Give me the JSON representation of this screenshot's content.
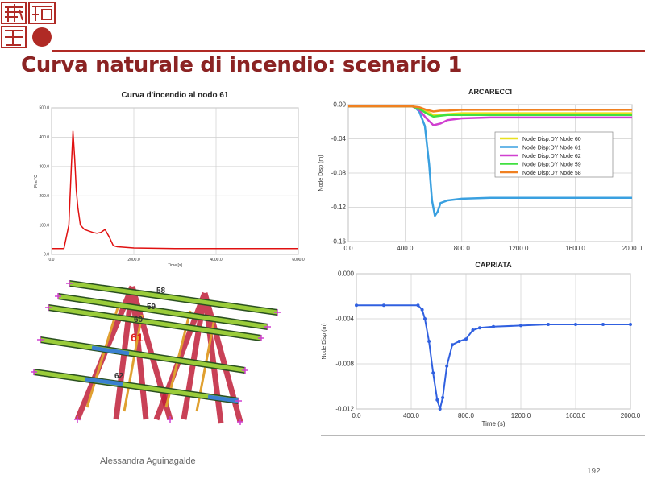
{
  "slide": {
    "title": "Curva naturale di incendio: scenario 1",
    "author": "Alessandra Aguinagalde",
    "page_number": "192"
  },
  "colors": {
    "title": "#8b2323",
    "logo": "#b02a25",
    "fire_curve": "#e01010"
  },
  "chart_data": [
    {
      "id": "fire",
      "type": "line",
      "title": "Curva d'incendio al nodo 61",
      "xlabel": "Time [s]",
      "ylabel": "Fire/°C",
      "xlim": [
        0,
        6000
      ],
      "ylim": [
        0,
        500
      ],
      "x_ticks": [
        "0.0",
        "2000.0",
        "4000.0",
        "6000.0"
      ],
      "x_tick_values": [
        0,
        2000,
        4000,
        6000
      ],
      "y_ticks": [
        "0.0",
        "100.0",
        "200.0",
        "300.0",
        "400.0",
        "500.0"
      ],
      "y_tick_values": [
        0,
        100,
        200,
        300,
        400,
        500
      ],
      "grid": true,
      "series": [
        {
          "color": "#e01010",
          "x": [
            0,
            300,
            420,
            480,
            520,
            560,
            600,
            640,
            700,
            800,
            900,
            1000,
            1100,
            1200,
            1300,
            1400,
            1500,
            1600,
            1800,
            2000,
            2500,
            3000,
            4000,
            5000,
            6000
          ],
          "y": [
            20,
            20,
            100,
            300,
            420,
            330,
            220,
            160,
            100,
            85,
            80,
            75,
            72,
            75,
            85,
            60,
            30,
            26,
            24,
            22,
            21,
            20,
            20,
            20,
            20
          ]
        }
      ]
    },
    {
      "id": "arcarecci",
      "type": "line",
      "title": "ARCARECCI",
      "xlabel": "",
      "ylabel": "Node Disp (m)",
      "xlim": [
        0,
        2000
      ],
      "ylim": [
        -0.16,
        0
      ],
      "x_ticks": [
        "0.0",
        "400.0",
        "800.0",
        "1200.0",
        "1600.0",
        "2000.0"
      ],
      "x_tick_values": [
        0,
        400,
        800,
        1200,
        1600,
        2000
      ],
      "y_ticks": [
        "0.00",
        "-0.04",
        "-0.08",
        "-0.12",
        "-0.16"
      ],
      "y_tick_values": [
        0,
        -0.04,
        -0.08,
        -0.12,
        -0.16
      ],
      "grid": true,
      "legend": "right",
      "series": [
        {
          "name": "Node Disp:DY  Node 60",
          "color": "#e8e020",
          "x": [
            0,
            450,
            500,
            550,
            600,
            650,
            700,
            800,
            1000,
            2000
          ],
          "y": [
            -0.002,
            -0.002,
            -0.004,
            -0.008,
            -0.012,
            -0.012,
            -0.011,
            -0.01,
            -0.01,
            -0.01
          ]
        },
        {
          "name": "Node Disp:DY  Node 61",
          "color": "#3aa0e0",
          "x": [
            0,
            460,
            500,
            540,
            570,
            590,
            610,
            630,
            650,
            700,
            800,
            1000,
            1200,
            1400,
            2000
          ],
          "y": [
            -0.002,
            -0.002,
            -0.008,
            -0.025,
            -0.07,
            -0.112,
            -0.13,
            -0.125,
            -0.115,
            -0.112,
            -0.11,
            -0.109,
            -0.109,
            -0.109,
            -0.109
          ]
        },
        {
          "name": "Node Disp:DY  Node 62",
          "color": "#d040d0",
          "x": [
            0,
            450,
            500,
            550,
            600,
            650,
            700,
            800,
            1000,
            2000
          ],
          "y": [
            -0.002,
            -0.002,
            -0.006,
            -0.016,
            -0.024,
            -0.022,
            -0.018,
            -0.016,
            -0.015,
            -0.015
          ]
        },
        {
          "name": "Node Disp:DY  Node 59",
          "color": "#40e040",
          "x": [
            0,
            450,
            500,
            550,
            600,
            650,
            700,
            800,
            1000,
            2000
          ],
          "y": [
            -0.002,
            -0.002,
            -0.005,
            -0.01,
            -0.014,
            -0.013,
            -0.012,
            -0.012,
            -0.012,
            -0.012
          ]
        },
        {
          "name": "Node Disp:DY  Node 58",
          "color": "#f08020",
          "x": [
            0,
            450,
            500,
            550,
            600,
            650,
            700,
            800,
            1000,
            2000
          ],
          "y": [
            -0.002,
            -0.002,
            -0.003,
            -0.006,
            -0.008,
            -0.007,
            -0.007,
            -0.006,
            -0.006,
            -0.006
          ]
        }
      ]
    },
    {
      "id": "capriata",
      "type": "line",
      "title": "CAPRIATA",
      "xlabel": "Time (s)",
      "ylabel": "Node Disp (m)",
      "xlim": [
        0,
        2000
      ],
      "ylim": [
        -0.012,
        0
      ],
      "x_ticks": [
        "0.0",
        "400.0",
        "800.0",
        "1200.0",
        "1600.0",
        "2000.0"
      ],
      "x_tick_values": [
        0,
        400,
        800,
        1200,
        1600,
        2000
      ],
      "y_ticks": [
        "0.000",
        "-0.004",
        "-0.008",
        "-0.012"
      ],
      "y_tick_values": [
        0,
        -0.004,
        -0.008,
        -0.012
      ],
      "grid": true,
      "series": [
        {
          "color": "#3060e0",
          "x": [
            0,
            200,
            450,
            480,
            500,
            530,
            560,
            590,
            610,
            630,
            660,
            700,
            750,
            800,
            850,
            900,
            1000,
            1200,
            1400,
            1600,
            1800,
            2000
          ],
          "y": [
            -0.0028,
            -0.0028,
            -0.0028,
            -0.0032,
            -0.004,
            -0.006,
            -0.0088,
            -0.0112,
            -0.012,
            -0.011,
            -0.0082,
            -0.0063,
            -0.006,
            -0.0058,
            -0.005,
            -0.0048,
            -0.0047,
            -0.0046,
            -0.0045,
            -0.0045,
            -0.0045,
            -0.0045
          ]
        }
      ]
    }
  ],
  "structure": {
    "labels": [
      {
        "text": "58",
        "color": "#333333"
      },
      {
        "text": "59",
        "color": "#333333"
      },
      {
        "text": "60",
        "color": "#333333"
      },
      {
        "text": "61",
        "color": "#e02020"
      },
      {
        "text": "62",
        "color": "#333333"
      }
    ]
  }
}
